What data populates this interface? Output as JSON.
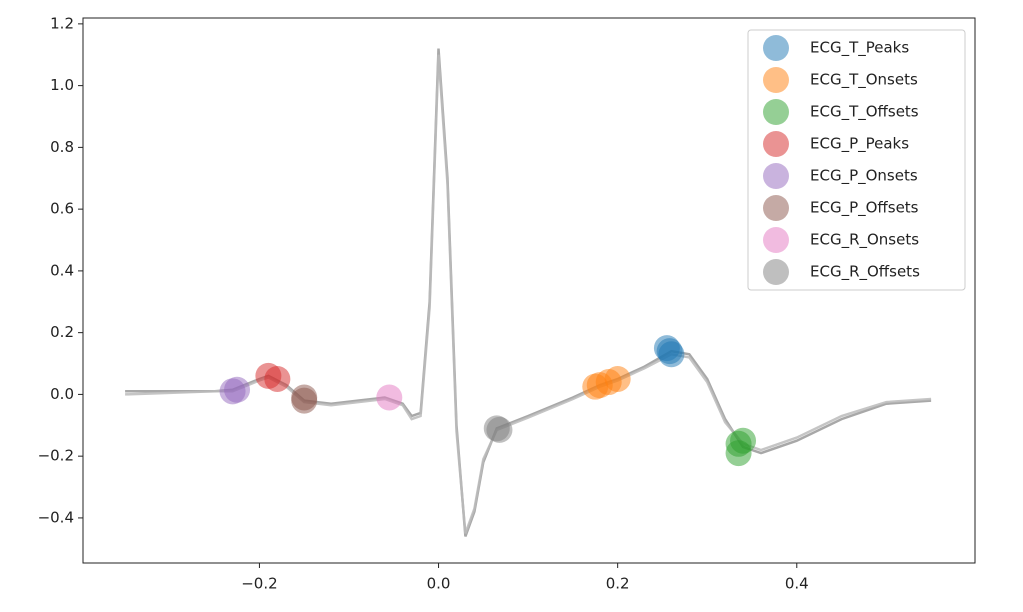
{
  "chart_data": {
    "type": "line",
    "x": [
      -0.35,
      -0.3,
      -0.25,
      -0.23,
      -0.2,
      -0.19,
      -0.17,
      -0.15,
      -0.12,
      -0.09,
      -0.06,
      -0.04,
      -0.03,
      -0.02,
      -0.01,
      0.0,
      0.01,
      0.02,
      0.03,
      0.04,
      0.05,
      0.065,
      0.1,
      0.15,
      0.18,
      0.2,
      0.23,
      0.26,
      0.28,
      0.3,
      0.32,
      0.34,
      0.36,
      0.4,
      0.45,
      0.5,
      0.55
    ],
    "series": [
      {
        "color": "#999999",
        "values": [
          0.01,
          0.01,
          0.01,
          0.015,
          0.05,
          0.06,
          0.03,
          -0.02,
          -0.03,
          -0.02,
          -0.01,
          -0.03,
          -0.07,
          -0.06,
          0.3,
          1.12,
          0.7,
          -0.1,
          -0.46,
          -0.38,
          -0.22,
          -0.11,
          -0.07,
          -0.01,
          0.03,
          0.05,
          0.09,
          0.14,
          0.13,
          0.05,
          -0.08,
          -0.17,
          -0.19,
          -0.15,
          -0.08,
          -0.03,
          -0.02
        ]
      },
      {
        "color": "#bbbbbb",
        "values": [
          0.0,
          0.005,
          0.01,
          0.01,
          0.045,
          0.055,
          0.025,
          -0.025,
          -0.035,
          -0.025,
          -0.015,
          -0.035,
          -0.08,
          -0.07,
          0.28,
          1.1,
          0.68,
          -0.12,
          -0.45,
          -0.37,
          -0.21,
          -0.115,
          -0.075,
          -0.015,
          0.025,
          0.045,
          0.085,
          0.13,
          0.12,
          0.04,
          -0.09,
          -0.16,
          -0.18,
          -0.14,
          -0.07,
          -0.025,
          -0.015
        ]
      }
    ],
    "markers": [
      {
        "name": "ECG_T_Peaks",
        "color": "#1f77b4",
        "x": [
          0.255,
          0.26,
          0.258
        ],
        "values": [
          0.15,
          0.13,
          0.14
        ]
      },
      {
        "name": "ECG_T_Onsets",
        "color": "#ff7f0e",
        "x": [
          0.175,
          0.18,
          0.19,
          0.2
        ],
        "values": [
          0.025,
          0.03,
          0.04,
          0.05
        ]
      },
      {
        "name": "ECG_T_Offsets",
        "color": "#2ca02c",
        "x": [
          0.335,
          0.34,
          0.335
        ],
        "values": [
          -0.19,
          -0.15,
          -0.16
        ]
      },
      {
        "name": "ECG_P_Peaks",
        "color": "#d62728",
        "x": [
          -0.19,
          -0.18
        ],
        "values": [
          0.06,
          0.05
        ]
      },
      {
        "name": "ECG_P_Onsets",
        "color": "#9467bd",
        "x": [
          -0.23,
          -0.225
        ],
        "values": [
          0.01,
          0.015
        ]
      },
      {
        "name": "ECG_P_Offsets",
        "color": "#8c564b",
        "x": [
          -0.15,
          -0.15
        ],
        "values": [
          -0.02,
          -0.01
        ]
      },
      {
        "name": "ECG_R_Onsets",
        "color": "#e377c2",
        "x": [
          -0.055
        ],
        "values": [
          -0.01
        ]
      },
      {
        "name": "ECG_R_Offsets",
        "color": "#7f7f7f",
        "x": [
          0.065,
          0.068
        ],
        "values": [
          -0.11,
          -0.115
        ]
      }
    ],
    "xlim": [
      -0.397,
      0.599
    ],
    "ylim": [
      -0.546,
      1.219
    ],
    "xticks": [
      {
        "value": -0.2,
        "label": "−0.2"
      },
      {
        "value": 0,
        "label": "0.0"
      },
      0.2,
      0.4
    ],
    "yticks": [
      {
        "value": -0.4,
        "label": "−0.4"
      },
      {
        "value": -0.2,
        "label": "−0.2"
      },
      {
        "value": 0,
        "label": "0.0"
      },
      0.2,
      0.4,
      0.6,
      0.8,
      {
        "value": 1,
        "label": "1.0"
      },
      1.2
    ],
    "legend": "upper right"
  }
}
